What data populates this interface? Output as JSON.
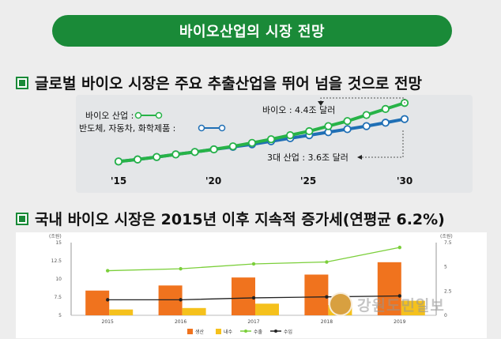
{
  "title": "바이오산업의 시장 전망",
  "section1": {
    "heading": "글로벌 바이오 시장은 주요 추출산업을 뛰어 넘을 것으로 전망",
    "legend": {
      "bio": "바이오 산업 :",
      "other": "반도체, 자동차, 화학제품 :"
    },
    "annotations": {
      "bio_end": "바이오 : 4.4조 달러",
      "other_end": "3대 산업 : 3.6조 달러"
    },
    "x_ticks": [
      "'15",
      "'20",
      "'25",
      "'30"
    ]
  },
  "section2": {
    "heading": "국내 바이오 시장은 2015년 이후 지속적 증가세(연평균 6.2%)",
    "unit_left": "(조원)",
    "unit_right": "(조원)",
    "y_ticks_left": [
      "15",
      "12.5",
      "10",
      "7.5",
      "5"
    ],
    "y_ticks_right": [
      "7.5",
      "5",
      "2.5",
      "0"
    ],
    "years": [
      "2015",
      "2016",
      "2017",
      "2018",
      "2019"
    ],
    "legend": [
      "생산",
      "내수",
      "수출",
      "수입"
    ]
  },
  "watermark": "강원도민일보",
  "colors": {
    "green": "#1a8a38",
    "bio_line": "#27b347",
    "other_line": "#1f6fb5",
    "bar_orange": "#f0731e",
    "bar_yellow": "#f5c11c",
    "export_green": "#7bcf3a",
    "import_black": "#222222"
  },
  "chart_data": [
    {
      "type": "line",
      "x": [
        2015,
        2016,
        2017,
        2018,
        2019,
        2020,
        2021,
        2022,
        2023,
        2024,
        2025,
        2026,
        2027,
        2028,
        2029,
        2030
      ],
      "series": [
        {
          "name": "바이오 산업",
          "values": [
            1.5,
            1.6,
            1.72,
            1.85,
            1.97,
            2.1,
            2.25,
            2.42,
            2.6,
            2.8,
            3.0,
            3.25,
            3.5,
            3.8,
            4.1,
            4.4
          ]
        },
        {
          "name": "반도체, 자동차, 화학제품",
          "values": [
            1.5,
            1.6,
            1.72,
            1.85,
            1.97,
            2.1,
            2.22,
            2.35,
            2.5,
            2.65,
            2.8,
            2.95,
            3.1,
            3.25,
            3.42,
            3.6
          ]
        }
      ],
      "ylim": [
        1.2,
        4.8
      ],
      "xlabel": "",
      "ylabel": ""
    },
    {
      "type": "bar",
      "categories": [
        "2015",
        "2016",
        "2017",
        "2018",
        "2019"
      ],
      "series": [
        {
          "name": "생산",
          "axis": "left",
          "values": [
            8.4,
            9.1,
            10.2,
            10.6,
            12.3
          ]
        },
        {
          "name": "내수",
          "axis": "left",
          "values": [
            5.8,
            6.0,
            6.6,
            6.4,
            7.0
          ]
        },
        {
          "name": "수출",
          "axis": "right",
          "type": "line",
          "values": [
            4.6,
            4.8,
            5.3,
            5.5,
            7.0
          ]
        },
        {
          "name": "수입",
          "axis": "right",
          "type": "line",
          "values": [
            1.6,
            1.6,
            1.8,
            1.9,
            2.0
          ]
        }
      ],
      "ylim_left": [
        5,
        15
      ],
      "ylim_right": [
        0,
        7.5
      ],
      "xlabel": "",
      "ylabel": "(조원)"
    }
  ]
}
